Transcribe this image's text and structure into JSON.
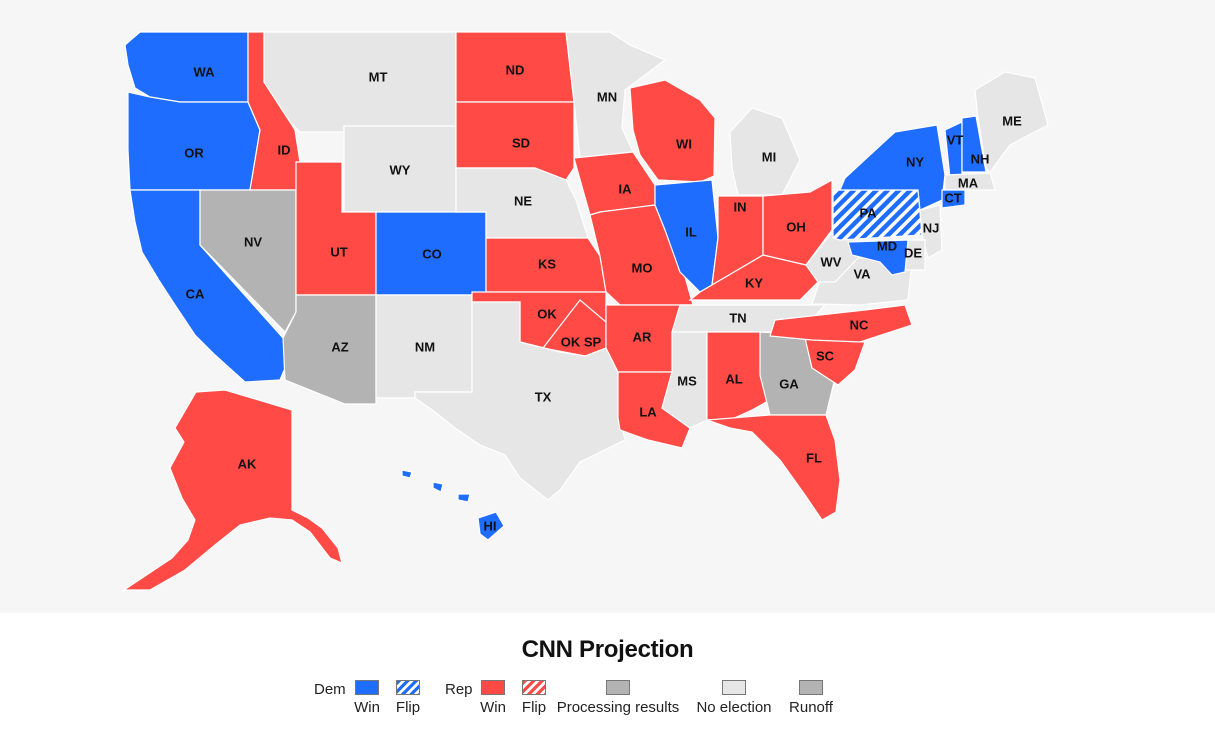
{
  "colors": {
    "dem_win": "#1f6dff",
    "rep_win": "#ff4a46",
    "processing": "#b3b3b3",
    "no_election": "#e6e6e6",
    "runoff": "#b3b3b3"
  },
  "map": {
    "states": [
      {
        "id": "WA",
        "label": "WA",
        "status": "dem_win"
      },
      {
        "id": "OR",
        "label": "OR",
        "status": "dem_win"
      },
      {
        "id": "CA",
        "label": "CA",
        "status": "dem_win"
      },
      {
        "id": "ID",
        "label": "ID",
        "status": "rep_win"
      },
      {
        "id": "NV",
        "label": "NV",
        "status": "processing"
      },
      {
        "id": "MT",
        "label": "MT",
        "status": "no_election"
      },
      {
        "id": "WY",
        "label": "WY",
        "status": "no_election"
      },
      {
        "id": "UT",
        "label": "UT",
        "status": "rep_win"
      },
      {
        "id": "CO",
        "label": "CO",
        "status": "dem_win"
      },
      {
        "id": "AZ",
        "label": "AZ",
        "status": "processing"
      },
      {
        "id": "NM",
        "label": "NM",
        "status": "no_election"
      },
      {
        "id": "ND",
        "label": "ND",
        "status": "rep_win"
      },
      {
        "id": "SD",
        "label": "SD",
        "status": "rep_win"
      },
      {
        "id": "NE",
        "label": "NE",
        "status": "no_election"
      },
      {
        "id": "KS",
        "label": "KS",
        "status": "rep_win"
      },
      {
        "id": "OK",
        "label": "OK",
        "status": "rep_win"
      },
      {
        "id": "OKSP",
        "label": "OK SP",
        "status": "rep_win"
      },
      {
        "id": "TX",
        "label": "TX",
        "status": "no_election"
      },
      {
        "id": "MN",
        "label": "MN",
        "status": "no_election"
      },
      {
        "id": "IA",
        "label": "IA",
        "status": "rep_win"
      },
      {
        "id": "MO",
        "label": "MO",
        "status": "rep_win"
      },
      {
        "id": "AR",
        "label": "AR",
        "status": "rep_win"
      },
      {
        "id": "LA",
        "label": "LA",
        "status": "rep_win"
      },
      {
        "id": "WI",
        "label": "WI",
        "status": "rep_win"
      },
      {
        "id": "IL",
        "label": "IL",
        "status": "dem_win"
      },
      {
        "id": "MI",
        "label": "MI",
        "status": "no_election"
      },
      {
        "id": "IN",
        "label": "IN",
        "status": "rep_win"
      },
      {
        "id": "OH",
        "label": "OH",
        "status": "rep_win"
      },
      {
        "id": "KY",
        "label": "KY",
        "status": "rep_win"
      },
      {
        "id": "TN",
        "label": "TN",
        "status": "no_election"
      },
      {
        "id": "MS",
        "label": "MS",
        "status": "no_election"
      },
      {
        "id": "AL",
        "label": "AL",
        "status": "rep_win"
      },
      {
        "id": "GA",
        "label": "GA",
        "status": "runoff"
      },
      {
        "id": "FL",
        "label": "FL",
        "status": "rep_win"
      },
      {
        "id": "SC",
        "label": "SC",
        "status": "rep_win"
      },
      {
        "id": "NC",
        "label": "NC",
        "status": "rep_win"
      },
      {
        "id": "VA",
        "label": "VA",
        "status": "no_election"
      },
      {
        "id": "WV",
        "label": "WV",
        "status": "no_election"
      },
      {
        "id": "PA",
        "label": "PA",
        "status": "dem_flip"
      },
      {
        "id": "NY",
        "label": "NY",
        "status": "dem_win"
      },
      {
        "id": "NJ",
        "label": "NJ",
        "status": "no_election"
      },
      {
        "id": "DE",
        "label": "DE",
        "status": "no_election"
      },
      {
        "id": "MD",
        "label": "MD",
        "status": "dem_win"
      },
      {
        "id": "VT",
        "label": "VT",
        "status": "dem_win"
      },
      {
        "id": "NH",
        "label": "NH",
        "status": "dem_win"
      },
      {
        "id": "MA",
        "label": "MA",
        "status": "no_election"
      },
      {
        "id": "CT",
        "label": "CT",
        "status": "dem_win"
      },
      {
        "id": "ME",
        "label": "ME",
        "status": "no_election"
      },
      {
        "id": "AK",
        "label": "AK",
        "status": "rep_win"
      },
      {
        "id": "HI",
        "label": "HI",
        "status": "dem_win"
      }
    ]
  },
  "legend": {
    "title": "CNN Projection",
    "dem_label": "Dem",
    "rep_label": "Rep",
    "items": [
      {
        "key": "dem_win",
        "label": "Win"
      },
      {
        "key": "dem_flip",
        "label": "Flip"
      },
      {
        "key": "rep_win",
        "label": "Win"
      },
      {
        "key": "rep_flip",
        "label": "Flip"
      },
      {
        "key": "processing",
        "label": "Processing results"
      },
      {
        "key": "no_election",
        "label": "No election"
      },
      {
        "key": "runoff",
        "label": "Runoff"
      }
    ]
  }
}
